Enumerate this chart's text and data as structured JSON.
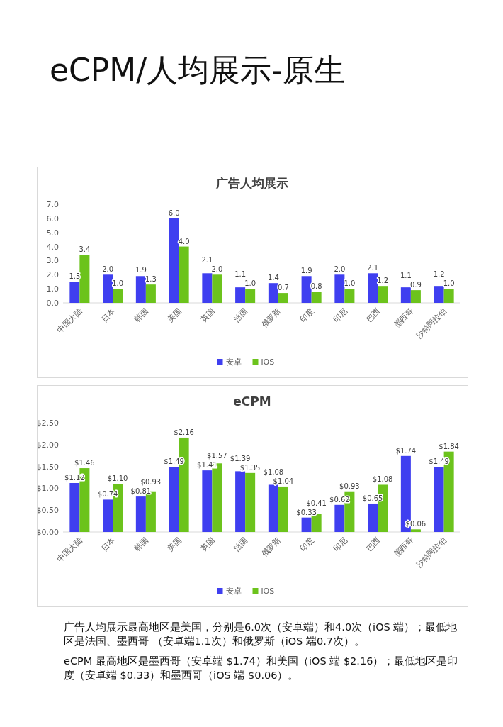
{
  "chart_data": [
    {
      "type": "bar",
      "title": "广告人均展示",
      "annotations": [
        "eCPM/人均展示-原生"
      ],
      "categories": [
        "中国大陆",
        "日本",
        "韩国",
        "美国",
        "英国",
        "法国",
        "俄罗斯",
        "印度",
        "印尼",
        "巴西",
        "墨西哥",
        "沙特阿拉伯"
      ],
      "series": [
        {
          "name": "安卓",
          "color": "#3f3ff0",
          "values": [
            1.5,
            2.0,
            1.9,
            6.0,
            2.1,
            1.1,
            1.4,
            1.9,
            2.0,
            2.1,
            1.1,
            1.2
          ],
          "value_labels": [
            "1.5",
            "2.0",
            "1.9",
            "6.0",
            "2.1",
            "1.1",
            "1.4",
            "1.9",
            "2.0",
            "2.1",
            "1.1",
            "1.2"
          ]
        },
        {
          "name": "iOS",
          "color": "#6cc31c",
          "values": [
            3.4,
            1.0,
            1.3,
            4.0,
            2.0,
            1.0,
            0.7,
            0.8,
            1.0,
            1.2,
            0.9,
            1.0
          ],
          "value_labels": [
            "3.4",
            "1.0",
            "1.3",
            "4.0",
            "2.0",
            "1.0",
            "0.7",
            "0.8",
            "1.0",
            "1.2",
            "0.9",
            "1.0"
          ]
        }
      ],
      "ylim": [
        0,
        7
      ],
      "yticks": [
        {
          "value": 0,
          "label": "0.0"
        },
        {
          "value": 1,
          "label": "1.0"
        },
        {
          "value": 2,
          "label": "2.0"
        },
        {
          "value": 3,
          "label": "3.0"
        },
        {
          "value": 4,
          "label": "4.0"
        },
        {
          "value": 5,
          "label": "5.0"
        },
        {
          "value": 6,
          "label": "6.0"
        },
        {
          "value": 7,
          "label": "7.0"
        }
      ],
      "legend": "bottom"
    },
    {
      "type": "bar",
      "title": "eCPM",
      "annotations": [
        "广告人均展示最高地区是美国，分别是6.0次（安卓端）和4.0次（iOS 端）；最低地区是法国、墨西哥 （安卓端1.1次）和俄罗斯（iOS 端0.7次）。",
        "eCPM 最高地区是墨西哥（安卓端 $1.74）和美国（iOS 端 $2.16）；最低地区是印度（安卓端 $0.33）和墨西哥（iOS 端 $0.06）。"
      ],
      "categories": [
        "中国大陆",
        "日本",
        "韩国",
        "美国",
        "英国",
        "法国",
        "俄罗斯",
        "印度",
        "印尼",
        "巴西",
        "墨西哥",
        "沙特阿拉伯"
      ],
      "series": [
        {
          "name": "安卓",
          "color": "#3f3ff0",
          "values": [
            1.12,
            0.74,
            0.81,
            1.49,
            1.41,
            1.39,
            1.08,
            0.33,
            0.62,
            0.65,
            1.74,
            1.49
          ],
          "value_labels": [
            "$1.12",
            "$0.74",
            "$0.81",
            "$1.49",
            "$1.41",
            "$1.39",
            "$1.08",
            "$0.33",
            "$0.62",
            "$0.65",
            "$1.74",
            "$1.49"
          ]
        },
        {
          "name": "iOS",
          "color": "#6cc31c",
          "values": [
            1.46,
            1.1,
            0.93,
            2.16,
            1.57,
            1.35,
            1.04,
            0.41,
            0.93,
            1.08,
            0.06,
            1.84
          ],
          "value_labels": [
            "$1.46",
            "$1.10",
            "$0.93",
            "$2.16",
            "$1.57",
            "$1.35",
            "$1.04",
            "$0.41",
            "$0.93",
            "$1.08",
            "$0.06",
            "$1.84"
          ]
        }
      ],
      "ylim": [
        0,
        2.5
      ],
      "yticks": [
        {
          "value": 0,
          "label": "$0.00"
        },
        {
          "value": 0.5,
          "label": "$0.50"
        },
        {
          "value": 1,
          "label": "$1.00"
        },
        {
          "value": 1.5,
          "label": "$1.50"
        },
        {
          "value": 2,
          "label": "$2.00"
        },
        {
          "value": 2.5,
          "label": "$2.50"
        }
      ],
      "legend": "bottom"
    }
  ]
}
